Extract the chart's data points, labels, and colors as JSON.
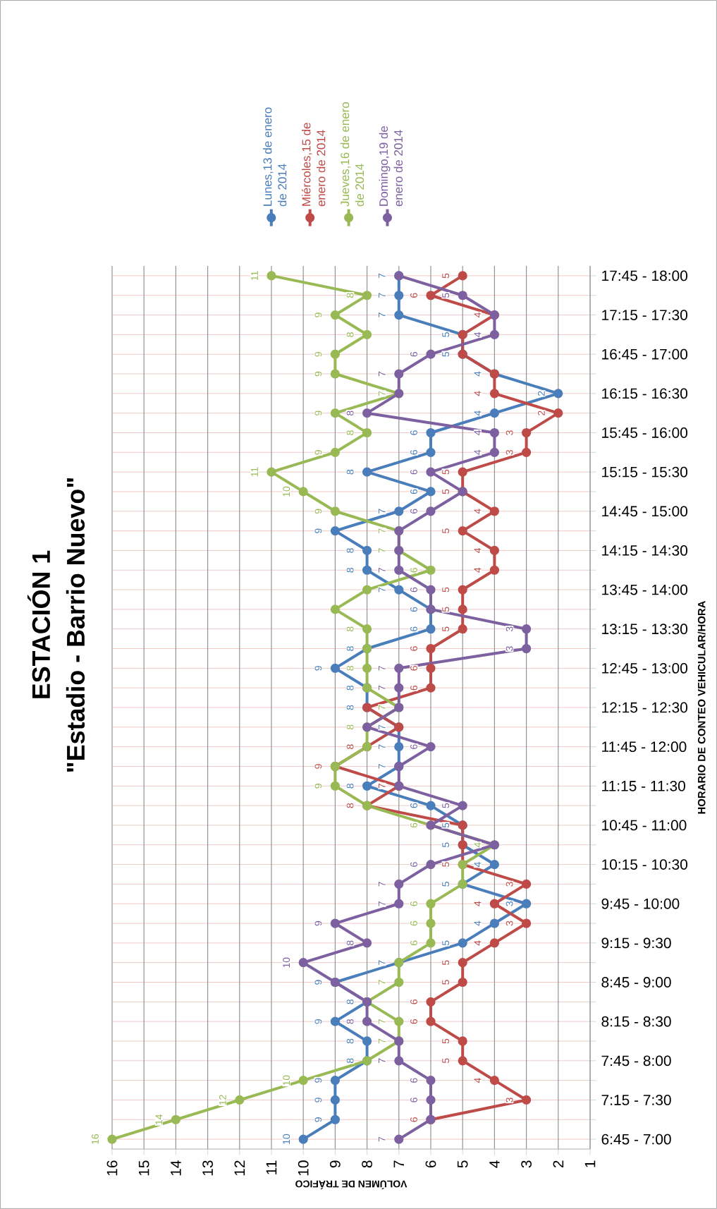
{
  "chart_data": {
    "type": "line",
    "orientation": "horizontal",
    "title": "ESTACIÓN 1",
    "subtitle": "\"Estadio - Barrio Nuevo\"",
    "xlabel": "VOLÚMEN DE TRÁFICO",
    "ylabel": "HORARIO DE CONTEO VEHICULAR/HORA",
    "categories": [
      "17:45 - 18:00",
      null,
      "17:15 - 17:30",
      null,
      "16:45 - 17:00",
      null,
      "16:15 - 16:30",
      null,
      "15:45 - 16:00",
      null,
      "15:15 - 15:30",
      null,
      "14:45 - 15:00",
      null,
      "14:15 - 14:30",
      null,
      "13:45 - 14:00",
      null,
      "13:15 - 13:30",
      null,
      "12:45 - 13:00",
      null,
      "12:15 - 12:30",
      null,
      "11:45 - 12:00",
      null,
      "11:15 - 11:30",
      null,
      "10:45 - 11:00",
      null,
      "10:15 - 10:30",
      null,
      "9:45 - 10:00",
      null,
      "9:15 - 9:30",
      null,
      "8:45 - 9:00",
      null,
      "8:15 - 8:30",
      null,
      "7:45 - 8:00",
      null,
      "7:15 - 7:30",
      null,
      "6:45 - 7:00"
    ],
    "series": [
      {
        "name": "Lunes,13 de enero de 2014",
        "color": "#4a7ebb",
        "values": [
          7,
          7,
          7,
          5,
          5,
          4,
          2,
          4,
          6,
          6,
          8,
          6,
          7,
          9,
          8,
          8,
          7,
          6,
          6,
          8,
          9,
          8,
          8,
          7,
          7,
          7,
          8,
          6,
          5,
          5,
          4,
          5,
          3,
          4,
          5,
          7,
          9,
          8,
          9,
          8,
          8,
          9,
          9,
          9,
          10
        ],
        "value_labels": [
          "7",
          "7",
          "7",
          "5",
          "5",
          "4",
          "2",
          "4",
          "6",
          "6",
          "8",
          "6",
          "7",
          "9",
          "8",
          "8",
          "7",
          "6",
          "6",
          "8",
          "9",
          "8",
          "8",
          "7",
          "7",
          "7",
          "8",
          "6",
          "5",
          "5",
          "4",
          "5",
          "3",
          "4",
          "5",
          "7",
          "9",
          "8",
          "9",
          "8",
          "8",
          "9",
          "9",
          "9",
          "10"
        ]
      },
      {
        "name": "Miércoles,15 de enero de 2014",
        "color": "#be4b48",
        "values": [
          5,
          6,
          4,
          5,
          5,
          4,
          4,
          2,
          3,
          3,
          5,
          5,
          4,
          5,
          4,
          4,
          5,
          5,
          5,
          6,
          6,
          6,
          8,
          7,
          8,
          9,
          7,
          8,
          5,
          5,
          5,
          3,
          4,
          3,
          4,
          5,
          5,
          6,
          6,
          5,
          5,
          4,
          3,
          6,
          null
        ],
        "value_labels": [
          "5",
          "6",
          "4",
          null,
          null,
          null,
          "4",
          "2",
          "3",
          "3",
          "5",
          "5",
          "4",
          "5",
          "4",
          "4",
          "5",
          "5",
          "5",
          "6",
          "6",
          "6",
          null,
          null,
          "8",
          "9",
          "7",
          "8",
          null,
          null,
          "5",
          "3",
          "4",
          "3",
          "4",
          "5",
          "5",
          "6",
          "6",
          "5",
          "5",
          "4",
          "3",
          "6",
          null
        ]
      },
      {
        "name": "Jueves,16 de enero de 2014",
        "color": "#98b954",
        "values": [
          11,
          8,
          9,
          8,
          9,
          9,
          7,
          9,
          8,
          9,
          11,
          10,
          9,
          7,
          7,
          6,
          8,
          9,
          8,
          8,
          8,
          8,
          7,
          8,
          8,
          9,
          9,
          8,
          6,
          4,
          5,
          5,
          6,
          6,
          6,
          7,
          7,
          8,
          7,
          7,
          8,
          10,
          12,
          14,
          16
        ],
        "value_labels": [
          "11",
          "8",
          "9",
          "8",
          "9",
          "9",
          "7",
          "9",
          "8",
          "9",
          "11",
          "10",
          "9",
          "7",
          "7",
          "6",
          null,
          null,
          "8",
          null,
          "8",
          null,
          "7",
          "8",
          null,
          null,
          "9",
          null,
          "6",
          "4",
          null,
          null,
          "6",
          "6",
          "6",
          null,
          "7",
          null,
          "7",
          "7",
          null,
          "10",
          "12",
          "14",
          "16"
        ]
      },
      {
        "name": "Domingo,19 de enero de 2014",
        "color": "#7d60a0",
        "values": [
          7,
          5,
          4,
          4,
          6,
          7,
          7,
          8,
          4,
          4,
          6,
          5,
          6,
          7,
          7,
          7,
          6,
          6,
          3,
          3,
          7,
          7,
          7,
          8,
          6,
          7,
          7,
          5,
          6,
          4,
          6,
          7,
          7,
          9,
          8,
          10,
          9,
          8,
          8,
          7,
          7,
          6,
          6,
          6,
          7
        ],
        "value_labels": [
          null,
          "5",
          null,
          "4",
          "6",
          "7",
          null,
          "8",
          "4",
          "4",
          "6",
          null,
          "6",
          null,
          null,
          "7",
          "6",
          null,
          "3",
          "3",
          "7",
          "7",
          null,
          null,
          "6",
          null,
          null,
          "5",
          null,
          null,
          "6",
          "7",
          "7",
          "9",
          "8",
          "10",
          null,
          null,
          "8",
          null,
          "7",
          "6",
          "6",
          null,
          "7"
        ]
      }
    ],
    "xlim": [
      16,
      1
    ],
    "xticks": [
      16,
      15,
      14,
      13,
      12,
      11,
      10,
      9,
      8,
      7,
      6,
      5,
      4,
      3,
      2,
      1
    ],
    "grid": true,
    "legend": "top",
    "marker": "circle"
  }
}
